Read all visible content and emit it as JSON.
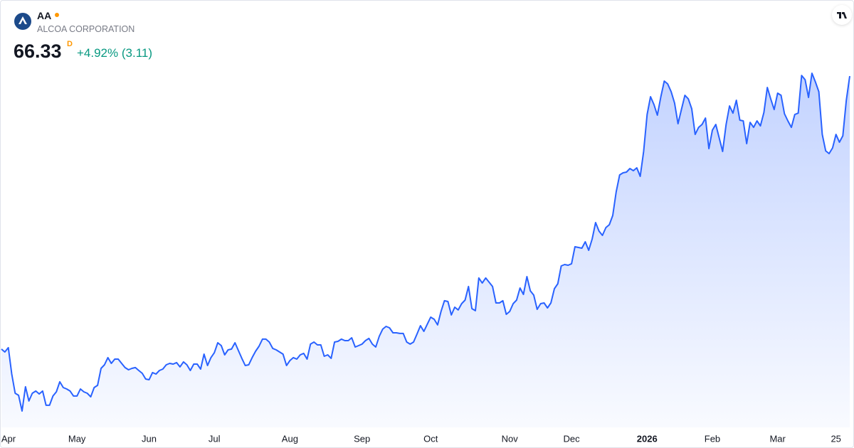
{
  "header": {
    "symbol": "AA",
    "name": "ALCOA CORPORATION",
    "price": "66.33",
    "interval": "D",
    "change": "+4.92% (3.11)"
  },
  "chart_data": {
    "type": "area",
    "series": [
      {
        "color": "#2962ff",
        "values": [
          31.2,
          30.83,
          31.38,
          27.99,
          25.52,
          25.25,
          23.23,
          26.35,
          24.52,
          25.52,
          25.8,
          25.43,
          25.8,
          23.97,
          23.97,
          25.16,
          25.7,
          26.99,
          26.25,
          26.07,
          25.8,
          25.16,
          25.16,
          26.07,
          25.7,
          25.52,
          25.06,
          26.25,
          26.53,
          28.72,
          29.18,
          30.1,
          29.36,
          29.91,
          29.91,
          29.36,
          28.82,
          28.54,
          28.72,
          28.82,
          28.45,
          28.08,
          27.35,
          27.26,
          28.18,
          27.99,
          28.45,
          28.63,
          29.18,
          29.36,
          29.27,
          29.46,
          28.91,
          29.55,
          29.18,
          28.45,
          29.27,
          29.27,
          28.63,
          30.55,
          29.09,
          30.1,
          30.74,
          32.02,
          31.65,
          30.46,
          31.1,
          31.2,
          32.02,
          31.01,
          30.01,
          29.09,
          29.18,
          30.1,
          30.92,
          31.56,
          32.48,
          32.48,
          32.11,
          31.29,
          31.1,
          30.83,
          30.55,
          29.09,
          29.73,
          30.1,
          29.91,
          30.46,
          30.65,
          29.91,
          31.84,
          32.11,
          31.74,
          31.74,
          30.28,
          30.46,
          30.01,
          32.11,
          32.2,
          32.48,
          32.29,
          32.29,
          32.66,
          31.47,
          31.65,
          31.84,
          32.29,
          32.57,
          31.84,
          31.47,
          32.84,
          33.76,
          34.12,
          33.94,
          33.3,
          33.3,
          33.21,
          33.21,
          32.11,
          31.84,
          32.11,
          33.12,
          34.21,
          33.48,
          34.4,
          35.31,
          35.04,
          34.31,
          36.04,
          37.42,
          37.32,
          35.59,
          36.59,
          36.23,
          37.05,
          37.51,
          39.25,
          36.41,
          36.14,
          40.35,
          39.7,
          40.35,
          39.8,
          39.25,
          37.14,
          37.14,
          37.42,
          35.68,
          36.04,
          37.05,
          37.51,
          39.06,
          38.24,
          40.53,
          38.7,
          38.15,
          36.32,
          37.05,
          37.14,
          36.5,
          37.14,
          38.97,
          39.61,
          41.9,
          42.08,
          41.99,
          42.18,
          44.37,
          44.28,
          44.19,
          45.01,
          43.91,
          45.38,
          47.48,
          46.38,
          45.83,
          46.84,
          47.21,
          48.4,
          51.42,
          53.61,
          53.89,
          53.98,
          54.44,
          54.16,
          54.53,
          53.43,
          56.63,
          61.39,
          63.68,
          62.67,
          61.3,
          63.68,
          65.69,
          65.33,
          64.32,
          62.86,
          60.2,
          62.03,
          63.86,
          63.4,
          62.12,
          58.83,
          59.74,
          60.11,
          60.93,
          57.0,
          59.38,
          60.11,
          58.37,
          56.63,
          60.11,
          62.49,
          61.57,
          63.22,
          60.66,
          60.57,
          57.64,
          60.38,
          59.74,
          60.57,
          59.93,
          61.66,
          64.87,
          63.4,
          62.03,
          64.14,
          63.86,
          61.48,
          60.57,
          59.74,
          61.39,
          61.57,
          66.42,
          65.87,
          63.59,
          66.7,
          65.6,
          64.32,
          58.83,
          56.72,
          56.36,
          57.09,
          58.83,
          57.82,
          58.65,
          63.22,
          66.33
        ]
      }
    ],
    "xlim": [
      0,
      247
    ],
    "xticks": [
      {
        "value": 2,
        "label": "Apr"
      },
      {
        "value": 22,
        "label": "May"
      },
      {
        "value": 43,
        "label": "Jun"
      },
      {
        "value": 62,
        "label": "Jul"
      },
      {
        "value": 84,
        "label": "Aug"
      },
      {
        "value": 105,
        "label": "Sep"
      },
      {
        "value": 125,
        "label": "Oct"
      },
      {
        "value": 148,
        "label": "Nov"
      },
      {
        "value": 166,
        "label": "Dec"
      },
      {
        "value": 188,
        "label": "2026"
      },
      {
        "value": 207,
        "label": "Feb"
      },
      {
        "value": 226,
        "label": "Mar"
      },
      {
        "value": 243,
        "label": "25"
      }
    ]
  }
}
